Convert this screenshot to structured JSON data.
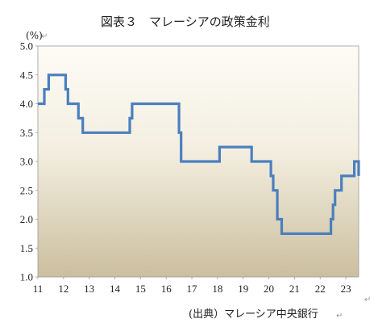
{
  "chart_data": {
    "type": "line",
    "title": "図表３　マレーシアの政策金利",
    "ylabel": "(%)",
    "xlabel": "",
    "source": "(出典）マレーシア中央銀行",
    "x_tick_labels": [
      "11",
      "12",
      "13",
      "14",
      "15",
      "16",
      "17",
      "18",
      "19",
      "20",
      "21",
      "22",
      "23"
    ],
    "y_tick_labels": [
      "5.0",
      "4.5",
      "4.0",
      "3.5",
      "3.0",
      "2.5",
      "2.0",
      "1.5",
      "1.0"
    ],
    "xlim": [
      11.0,
      23.5
    ],
    "ylim": [
      1.0,
      5.0
    ],
    "grid": false,
    "legend": "none",
    "line_color": "#4a7fbf",
    "background_top_color": "#fdfcf6",
    "background_bottom_color": "#cbbf9e",
    "series": [
      {
        "x": [
          11.0,
          11.2,
          11.25,
          11.33,
          11.42,
          11.5,
          12.0,
          12.08,
          12.17,
          12.5,
          12.58,
          12.67,
          12.75,
          13.0,
          14.5,
          14.58,
          14.67,
          14.75,
          15.0,
          16.0,
          16.42,
          16.5,
          16.58,
          17.0,
          18.0,
          18.08,
          19.0,
          19.33,
          19.5,
          20.0,
          20.08,
          20.17,
          20.25,
          20.33,
          20.5,
          21.0,
          22.0,
          22.33,
          22.42,
          22.5,
          22.58,
          22.67,
          22.83,
          23.0,
          23.25,
          23.33,
          23.5
        ],
        "values": [
          4.0,
          4.0,
          4.25,
          4.25,
          4.5,
          4.5,
          4.5,
          4.25,
          4.0,
          4.0,
          3.75,
          3.75,
          3.5,
          3.5,
          3.5,
          3.75,
          4.0,
          4.0,
          4.0,
          4.0,
          4.0,
          3.5,
          3.0,
          3.0,
          3.0,
          3.25,
          3.25,
          3.0,
          3.0,
          3.0,
          2.75,
          2.5,
          2.5,
          2.0,
          1.75,
          1.75,
          1.75,
          1.75,
          2.0,
          2.25,
          2.5,
          2.5,
          2.75,
          2.75,
          2.75,
          3.0,
          2.75
        ]
      }
    ]
  }
}
